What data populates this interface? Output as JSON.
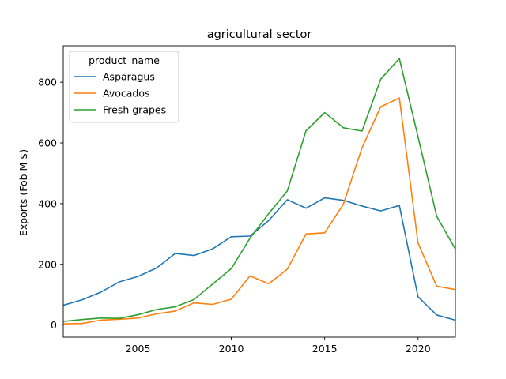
{
  "chart_data": {
    "type": "line",
    "title": "agricultural sector",
    "xlabel": "",
    "ylabel": "Exports (Fob M $)",
    "xlim": [
      2001,
      2022
    ],
    "ylim": [
      -40,
      920
    ],
    "x_ticks": [
      2005,
      2010,
      2015,
      2020
    ],
    "y_ticks": [
      0,
      200,
      400,
      600,
      800
    ],
    "grid": false,
    "legend": {
      "title": "product_name",
      "placement": "top-left"
    },
    "x": [
      2001,
      2002,
      2003,
      2004,
      2005,
      2006,
      2007,
      2008,
      2009,
      2010,
      2011,
      2012,
      2013,
      2014,
      2015,
      2016,
      2017,
      2018,
      2019,
      2020,
      2021,
      2022
    ],
    "series": [
      {
        "name": "Asparagus",
        "color": "#1f77b4",
        "values": [
          65,
          83,
          108,
          142,
          160,
          188,
          236,
          229,
          251,
          291,
          293,
          344,
          413,
          385,
          419,
          411,
          392,
          376,
          394,
          93,
          33,
          16
        ]
      },
      {
        "name": "Avocados",
        "color": "#ff7f0e",
        "values": [
          4,
          5,
          16,
          19,
          23,
          37,
          46,
          73,
          68,
          85,
          162,
          136,
          184,
          300,
          304,
          398,
          584,
          719,
          748,
          270,
          128,
          117
        ]
      },
      {
        "name": "Fresh grapes",
        "color": "#2ca02c",
        "values": [
          12,
          18,
          23,
          22,
          34,
          51,
          60,
          84,
          135,
          186,
          286,
          367,
          442,
          640,
          700,
          650,
          639,
          810,
          878,
          620,
          358,
          250
        ]
      }
    ]
  }
}
